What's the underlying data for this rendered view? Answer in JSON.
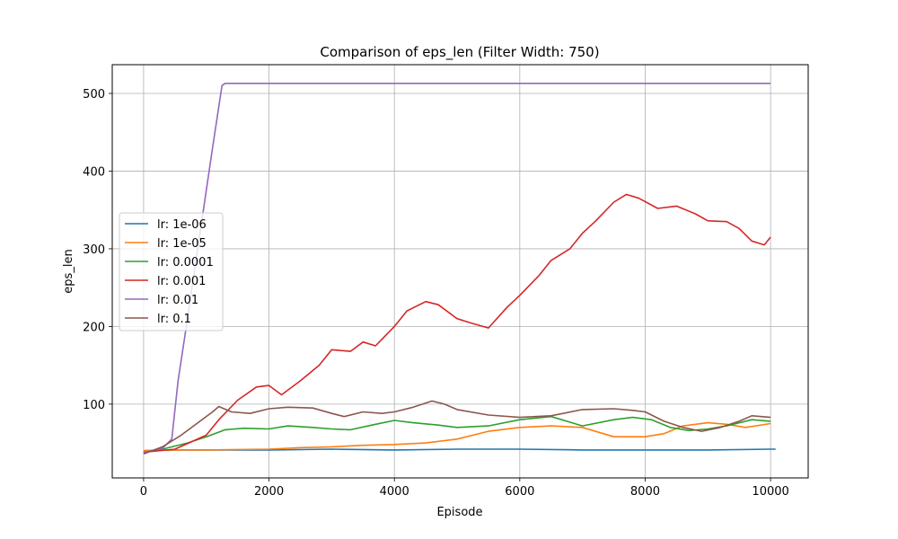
{
  "chart_data": {
    "type": "line",
    "title": "Comparison of eps_len (Filter Width: 750)",
    "xlabel": "Episode",
    "ylabel": "eps_len",
    "xlim": [
      -500,
      10600
    ],
    "ylim": [
      5,
      537
    ],
    "xticks": [
      0,
      2000,
      4000,
      6000,
      8000,
      10000
    ],
    "yticks": [
      100,
      200,
      300,
      400,
      500
    ],
    "grid": true,
    "legend_position": "center-left",
    "series": [
      {
        "name": "lr: 1e-06",
        "color": "#1f77b4",
        "x": [
          0,
          500,
          1000,
          2000,
          3000,
          4000,
          5000,
          5500,
          6000,
          7000,
          8000,
          9000,
          10000,
          10080
        ],
        "y": [
          40,
          41,
          41,
          41,
          42,
          41,
          42,
          42,
          42,
          41,
          41,
          41,
          42,
          42
        ]
      },
      {
        "name": "lr: 1e-05",
        "color": "#ff7f0e",
        "x": [
          0,
          500,
          1000,
          2000,
          2500,
          3000,
          3500,
          4000,
          4500,
          5000,
          5500,
          6000,
          6500,
          7000,
          7500,
          8000,
          8300,
          8600,
          9000,
          9300,
          9600,
          10000
        ],
        "y": [
          40,
          41,
          41,
          42,
          44,
          45,
          47,
          48,
          50,
          55,
          65,
          70,
          72,
          70,
          58,
          58,
          62,
          72,
          76,
          74,
          70,
          75
        ]
      },
      {
        "name": "lr: 0.0001",
        "color": "#2ca02c",
        "x": [
          0,
          300,
          700,
          1000,
          1300,
          1600,
          2000,
          2300,
          2700,
          3000,
          3300,
          3700,
          4000,
          4300,
          4700,
          5000,
          5500,
          6000,
          6500,
          7000,
          7500,
          7800,
          8100,
          8400,
          8700,
          9000,
          9300,
          9700,
          10000
        ],
        "y": [
          38,
          42,
          50,
          58,
          67,
          69,
          68,
          72,
          70,
          68,
          67,
          74,
          79,
          76,
          73,
          70,
          72,
          80,
          84,
          72,
          80,
          83,
          80,
          70,
          66,
          68,
          72,
          80,
          78
        ]
      },
      {
        "name": "lr: 0.001",
        "color": "#d62728",
        "x": [
          0,
          500,
          1000,
          1200,
          1500,
          1800,
          2000,
          2200,
          2500,
          2800,
          3000,
          3300,
          3500,
          3700,
          4000,
          4200,
          4500,
          4700,
          5000,
          5200,
          5500,
          5800,
          6000,
          6300,
          6500,
          6800,
          7000,
          7200,
          7500,
          7700,
          7900,
          8200,
          8500,
          8800,
          9000,
          9300,
          9500,
          9700,
          9900,
          10000
        ],
        "y": [
          38,
          42,
          60,
          80,
          105,
          122,
          124,
          112,
          130,
          150,
          170,
          168,
          180,
          175,
          200,
          220,
          232,
          228,
          210,
          205,
          198,
          225,
          240,
          265,
          285,
          300,
          320,
          335,
          360,
          370,
          365,
          352,
          355,
          345,
          336,
          335,
          326,
          310,
          305,
          315
        ]
      },
      {
        "name": "lr: 0.01",
        "color": "#9467bd",
        "x": [
          0,
          300,
          450,
          550,
          700,
          900,
          1100,
          1250,
          1300,
          1500,
          3000,
          6000,
          10000
        ],
        "y": [
          38,
          43,
          55,
          130,
          210,
          320,
          430,
          510,
          513,
          513,
          513,
          513,
          513
        ]
      },
      {
        "name": "lr: 0.1",
        "color": "#8c564b",
        "x": [
          0,
          300,
          600,
          900,
          1100,
          1200,
          1400,
          1700,
          2000,
          2300,
          2700,
          3000,
          3200,
          3500,
          3800,
          4000,
          4300,
          4600,
          4800,
          5000,
          5500,
          6000,
          6500,
          7000,
          7500,
          7800,
          8000,
          8300,
          8600,
          8900,
          9200,
          9500,
          9700,
          10000
        ],
        "y": [
          36,
          45,
          60,
          78,
          90,
          97,
          90,
          88,
          94,
          96,
          95,
          88,
          84,
          90,
          88,
          90,
          96,
          104,
          100,
          93,
          86,
          83,
          85,
          93,
          94,
          92,
          90,
          78,
          70,
          65,
          70,
          78,
          85,
          83
        ]
      }
    ]
  }
}
